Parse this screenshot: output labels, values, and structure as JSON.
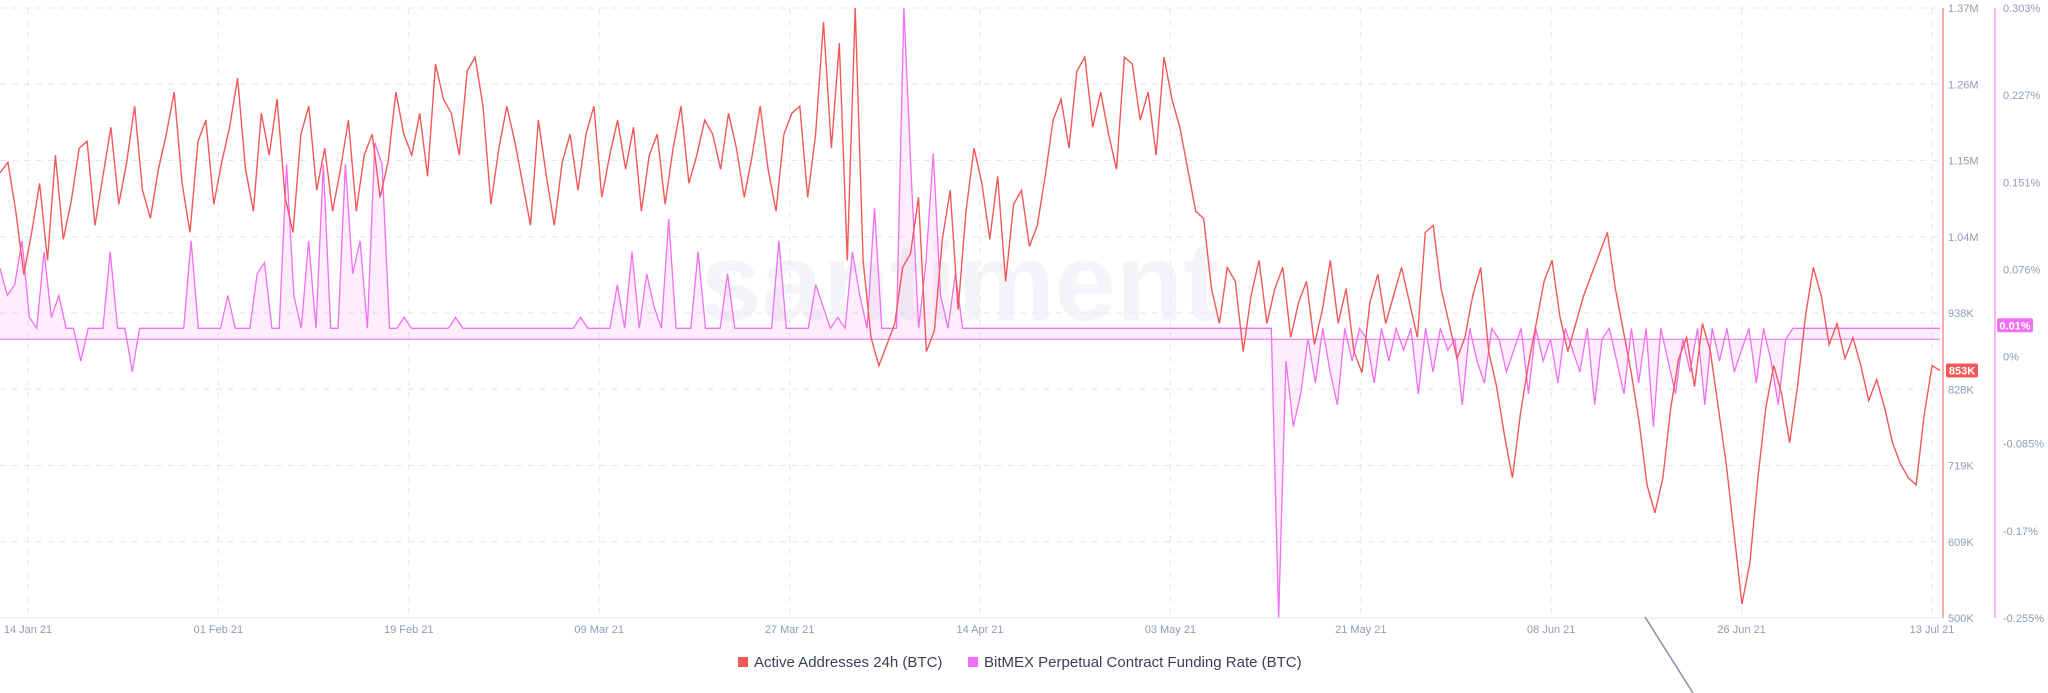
{
  "chart_data": {
    "type": "line",
    "watermark": "santiment",
    "x_ticks": [
      "14 Jan 21",
      "01 Feb 21",
      "19 Feb 21",
      "09 Mar 21",
      "27 Mar 21",
      "14 Apr 21",
      "03 May 21",
      "21 May 21",
      "08 Jun 21",
      "26 Jun 21",
      "13 Jul 21"
    ],
    "x_range": [
      "2021-01-14",
      "2021-07-13"
    ],
    "y_left": {
      "ticks": [
        "1.37M",
        "1.26M",
        "1.15M",
        "1.04M",
        "938K",
        "828K",
        "719K",
        "609K",
        "500K"
      ],
      "min": 500000,
      "max": 1370000
    },
    "y_right": {
      "ticks": [
        "0.303%",
        "0.227%",
        "0.151%",
        "0.076%",
        "0%",
        "-0.085%",
        "-0.17%",
        "-0.255%"
      ],
      "min": -0.255,
      "max": 0.303
    },
    "current_left": "853K",
    "current_right": "0.01%",
    "legend_position": "bottom-center",
    "grid": true,
    "series": [
      {
        "name": "Active Addresses 24h (BTC)",
        "color": "#f25858",
        "axis": "left",
        "values": [
          1135000,
          1150000,
          1080000,
          990000,
          1050000,
          1120000,
          1010000,
          1160000,
          1040000,
          1095000,
          1170000,
          1180000,
          1060000,
          1130000,
          1200000,
          1090000,
          1150000,
          1230000,
          1110000,
          1070000,
          1140000,
          1190000,
          1250000,
          1120000,
          1050000,
          1180000,
          1210000,
          1090000,
          1150000,
          1200000,
          1270000,
          1140000,
          1080000,
          1220000,
          1160000,
          1240000,
          1100000,
          1050000,
          1190000,
          1230000,
          1110000,
          1170000,
          1080000,
          1140000,
          1210000,
          1080000,
          1160000,
          1190000,
          1100000,
          1150000,
          1250000,
          1190000,
          1160000,
          1220000,
          1130000,
          1290000,
          1240000,
          1220000,
          1160000,
          1280000,
          1300000,
          1230000,
          1090000,
          1170000,
          1230000,
          1180000,
          1120000,
          1060000,
          1210000,
          1130000,
          1060000,
          1150000,
          1190000,
          1110000,
          1190000,
          1230000,
          1100000,
          1160000,
          1210000,
          1140000,
          1200000,
          1080000,
          1160000,
          1190000,
          1090000,
          1170000,
          1230000,
          1120000,
          1160000,
          1210000,
          1190000,
          1140000,
          1220000,
          1170000,
          1100000,
          1160000,
          1230000,
          1140000,
          1080000,
          1190000,
          1220000,
          1230000,
          1100000,
          1190000,
          1350000,
          1170000,
          1320000,
          1010000,
          1370000,
          1010000,
          900000,
          860000,
          890000,
          920000,
          1000000,
          1020000,
          1100000,
          880000,
          910000,
          1040000,
          1110000,
          940000,
          1080000,
          1170000,
          1120000,
          1040000,
          1130000,
          980000,
          1090000,
          1110000,
          1030000,
          1060000,
          1130000,
          1210000,
          1240000,
          1170000,
          1280000,
          1300000,
          1200000,
          1250000,
          1190000,
          1140000,
          1300000,
          1290000,
          1210000,
          1250000,
          1160000,
          1300000,
          1240000,
          1200000,
          1140000,
          1080000,
          1070000,
          970000,
          920000,
          1000000,
          980000,
          880000,
          960000,
          1010000,
          920000,
          970000,
          1000000,
          900000,
          950000,
          980000,
          890000,
          940000,
          1010000,
          920000,
          970000,
          880000,
          850000,
          950000,
          990000,
          920000,
          960000,
          1000000,
          950000,
          900000,
          1050000,
          1060000,
          970000,
          920000,
          870000,
          900000,
          960000,
          1000000,
          880000,
          830000,
          760000,
          700000,
          790000,
          860000,
          920000,
          980000,
          1010000,
          930000,
          880000,
          920000,
          960000,
          990000,
          1020000,
          1050000,
          970000,
          910000,
          850000,
          780000,
          690000,
          650000,
          700000,
          800000,
          870000,
          900000,
          830000,
          920000,
          880000,
          800000,
          720000,
          620000,
          520000,
          580000,
          700000,
          800000,
          860000,
          820000,
          750000,
          830000,
          930000,
          1000000,
          960000,
          890000,
          920000,
          870000,
          900000,
          860000,
          810000,
          840000,
          800000,
          750000,
          720000,
          700000,
          690000,
          790000,
          860000,
          853000
        ]
      },
      {
        "name": "BitMEX Perpetual Contract Funding Rate (BTC)",
        "color": "#f26ef2",
        "axis": "right",
        "values": [
          0.065,
          0.04,
          0.05,
          0.09,
          0.02,
          0.01,
          0.08,
          0.02,
          0.04,
          0.01,
          0.01,
          -0.02,
          0.01,
          0.01,
          0.01,
          0.08,
          0.01,
          0.01,
          -0.03,
          0.01,
          0.01,
          0.01,
          0.01,
          0.01,
          0.01,
          0.01,
          0.09,
          0.01,
          0.01,
          0.01,
          0.01,
          0.04,
          0.01,
          0.01,
          0.01,
          0.06,
          0.07,
          0.01,
          0.01,
          0.16,
          0.04,
          0.01,
          0.09,
          0.01,
          0.16,
          0.01,
          0.01,
          0.16,
          0.06,
          0.09,
          0.01,
          0.18,
          0.16,
          0.01,
          0.01,
          0.02,
          0.01,
          0.01,
          0.01,
          0.01,
          0.01,
          0.01,
          0.02,
          0.01,
          0.01,
          0.01,
          0.01,
          0.01,
          0.01,
          0.01,
          0.01,
          0.01,
          0.01,
          0.01,
          0.01,
          0.01,
          0.01,
          0.01,
          0.01,
          0.02,
          0.01,
          0.01,
          0.01,
          0.01,
          0.05,
          0.01,
          0.08,
          0.01,
          0.06,
          0.03,
          0.01,
          0.11,
          0.01,
          0.01,
          0.01,
          0.08,
          0.01,
          0.01,
          0.01,
          0.06,
          0.01,
          0.01,
          0.01,
          0.01,
          0.01,
          0.01,
          0.09,
          0.01,
          0.01,
          0.01,
          0.01,
          0.05,
          0.03,
          0.01,
          0.02,
          0.01,
          0.08,
          0.04,
          0.01,
          0.12,
          0.01,
          0.01,
          0.01,
          0.303,
          0.15,
          0.01,
          0.07,
          0.17,
          0.04,
          0.01,
          0.06,
          0.01,
          0.01,
          0.01,
          0.01,
          0.01,
          0.01,
          0.01,
          0.01,
          0.01,
          0.01,
          0.01,
          0.01,
          0.01,
          0.01,
          0.01,
          0.01,
          0.01,
          0.01,
          0.01,
          0.01,
          0.01,
          0.01,
          0.01,
          0.01,
          0.01,
          0.01,
          0.01,
          0.01,
          0.01,
          0.01,
          0.01,
          0.01,
          0.01,
          0.01,
          0.01,
          0.01,
          0.01,
          0.01,
          0.01,
          0.01,
          0.01,
          0.01,
          0.01,
          -0.255,
          -0.02,
          -0.08,
          -0.05,
          0.0,
          -0.04,
          0.01,
          -0.03,
          -0.06,
          0.01,
          -0.02,
          0.01,
          0.0,
          -0.04,
          0.01,
          -0.02,
          0.01,
          -0.01,
          0.01,
          -0.05,
          0.01,
          -0.03,
          0.01,
          -0.01,
          0.0,
          -0.06,
          0.01,
          -0.02,
          -0.04,
          0.01,
          0.0,
          -0.03,
          -0.01,
          0.01,
          -0.05,
          0.01,
          -0.02,
          0.0,
          -0.04,
          0.01,
          -0.01,
          -0.03,
          0.01,
          -0.06,
          0.0,
          0.01,
          -0.02,
          -0.05,
          0.01,
          -0.04,
          0.01,
          -0.08,
          0.01,
          -0.02,
          -0.05,
          0.0,
          -0.03,
          0.01,
          -0.06,
          0.01,
          -0.02,
          0.01,
          -0.03,
          -0.01,
          0.01,
          -0.04,
          0.01,
          -0.02,
          -0.06,
          0.0,
          0.01,
          0.01,
          0.01,
          0.01,
          0.01,
          0.01,
          0.01,
          0.01,
          0.01,
          0.01,
          0.01,
          0.01,
          0.01,
          0.01,
          0.01,
          0.01,
          0.01,
          0.01,
          0.01,
          0.01,
          0.01
        ]
      }
    ]
  }
}
